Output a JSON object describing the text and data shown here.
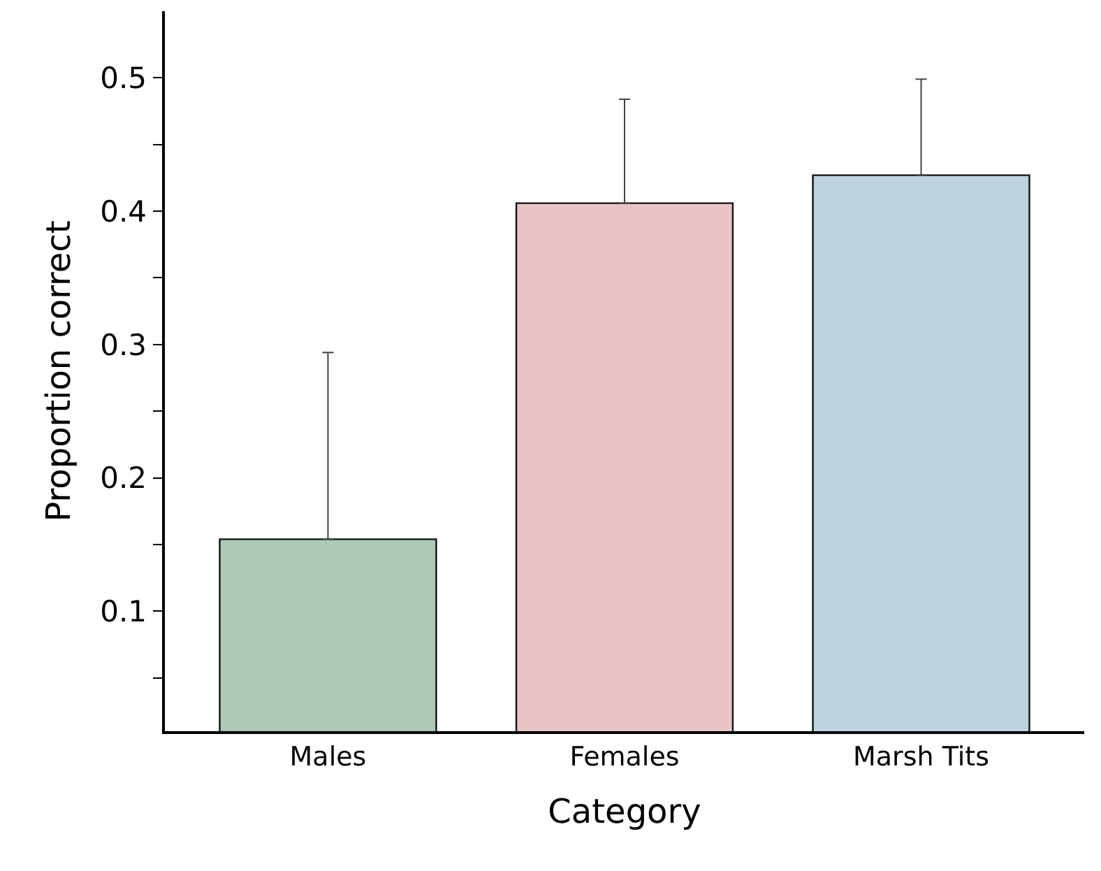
{
  "chart_data": {
    "type": "bar",
    "categories": [
      "Males",
      "Females",
      "Marsh Tits"
    ],
    "values": [
      0.154,
      0.406,
      0.427
    ],
    "colors": [
      "#adc9b7",
      "#e8c4c8",
      "#bcd4dd"
    ],
    "errors": [
      [
        0.154,
        0.294
      ],
      [
        0.406,
        0.484
      ],
      [
        0.427,
        0.499
      ]
    ],
    "xlabel": "Category",
    "ylabel": "Proportion correct",
    "ylim": [
      0.01,
      0.55
    ],
    "yticks": [
      {
        "value": 0.05,
        "label": null
      },
      0.1,
      {
        "value": 0.15,
        "label": null
      },
      0.2,
      {
        "value": 0.25,
        "label": null
      },
      0.3,
      {
        "value": 0.35,
        "label": null
      },
      0.4,
      {
        "value": 0.45,
        "label": null
      },
      0.5
    ],
    "legend": false
  }
}
